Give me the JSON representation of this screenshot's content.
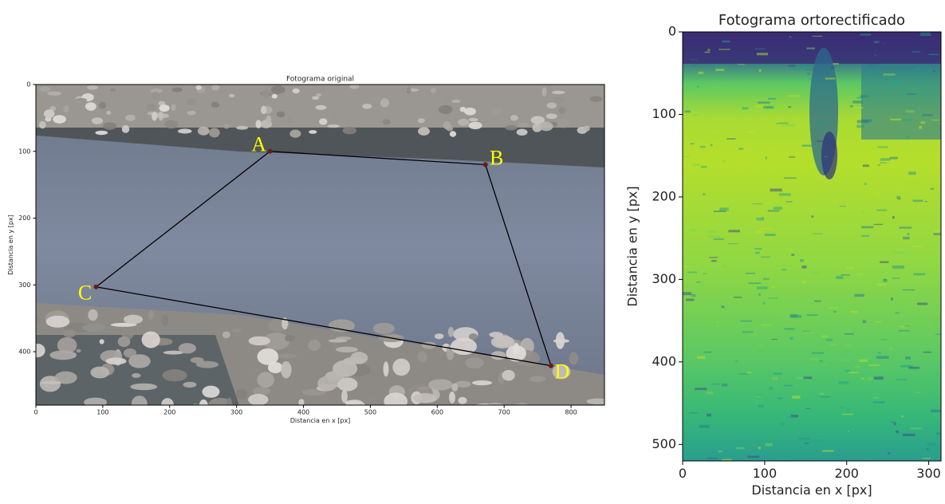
{
  "chart_data": [
    {
      "type": "image",
      "title": "Fotograma original",
      "xlabel": "Distancia en x [px]",
      "ylabel": "Distancia en y [px]",
      "xlim": [
        0,
        850
      ],
      "ylim": [
        480,
        0
      ],
      "xticks": [
        0,
        100,
        200,
        300,
        400,
        500,
        600,
        700,
        800
      ],
      "yticks": [
        0,
        100,
        200,
        300,
        400
      ],
      "points": [
        {
          "label": "A",
          "x": 350,
          "y": 100
        },
        {
          "label": "B",
          "x": 672,
          "y": 120
        },
        {
          "label": "D",
          "x": 770,
          "y": 421
        },
        {
          "label": "C",
          "x": 90,
          "y": 303
        }
      ],
      "point_label_color": "#ffff00",
      "line_color": "#000000"
    },
    {
      "type": "image",
      "title": "Fotograma ortorectificado",
      "xlabel": "Distancia en x [px]",
      "ylabel": "Distancia en y [px]",
      "xlim": [
        0,
        315
      ],
      "ylim": [
        520,
        0
      ],
      "xticks": [
        0,
        100,
        200,
        300
      ],
      "yticks": [
        0,
        100,
        200,
        300,
        400,
        500
      ]
    }
  ]
}
